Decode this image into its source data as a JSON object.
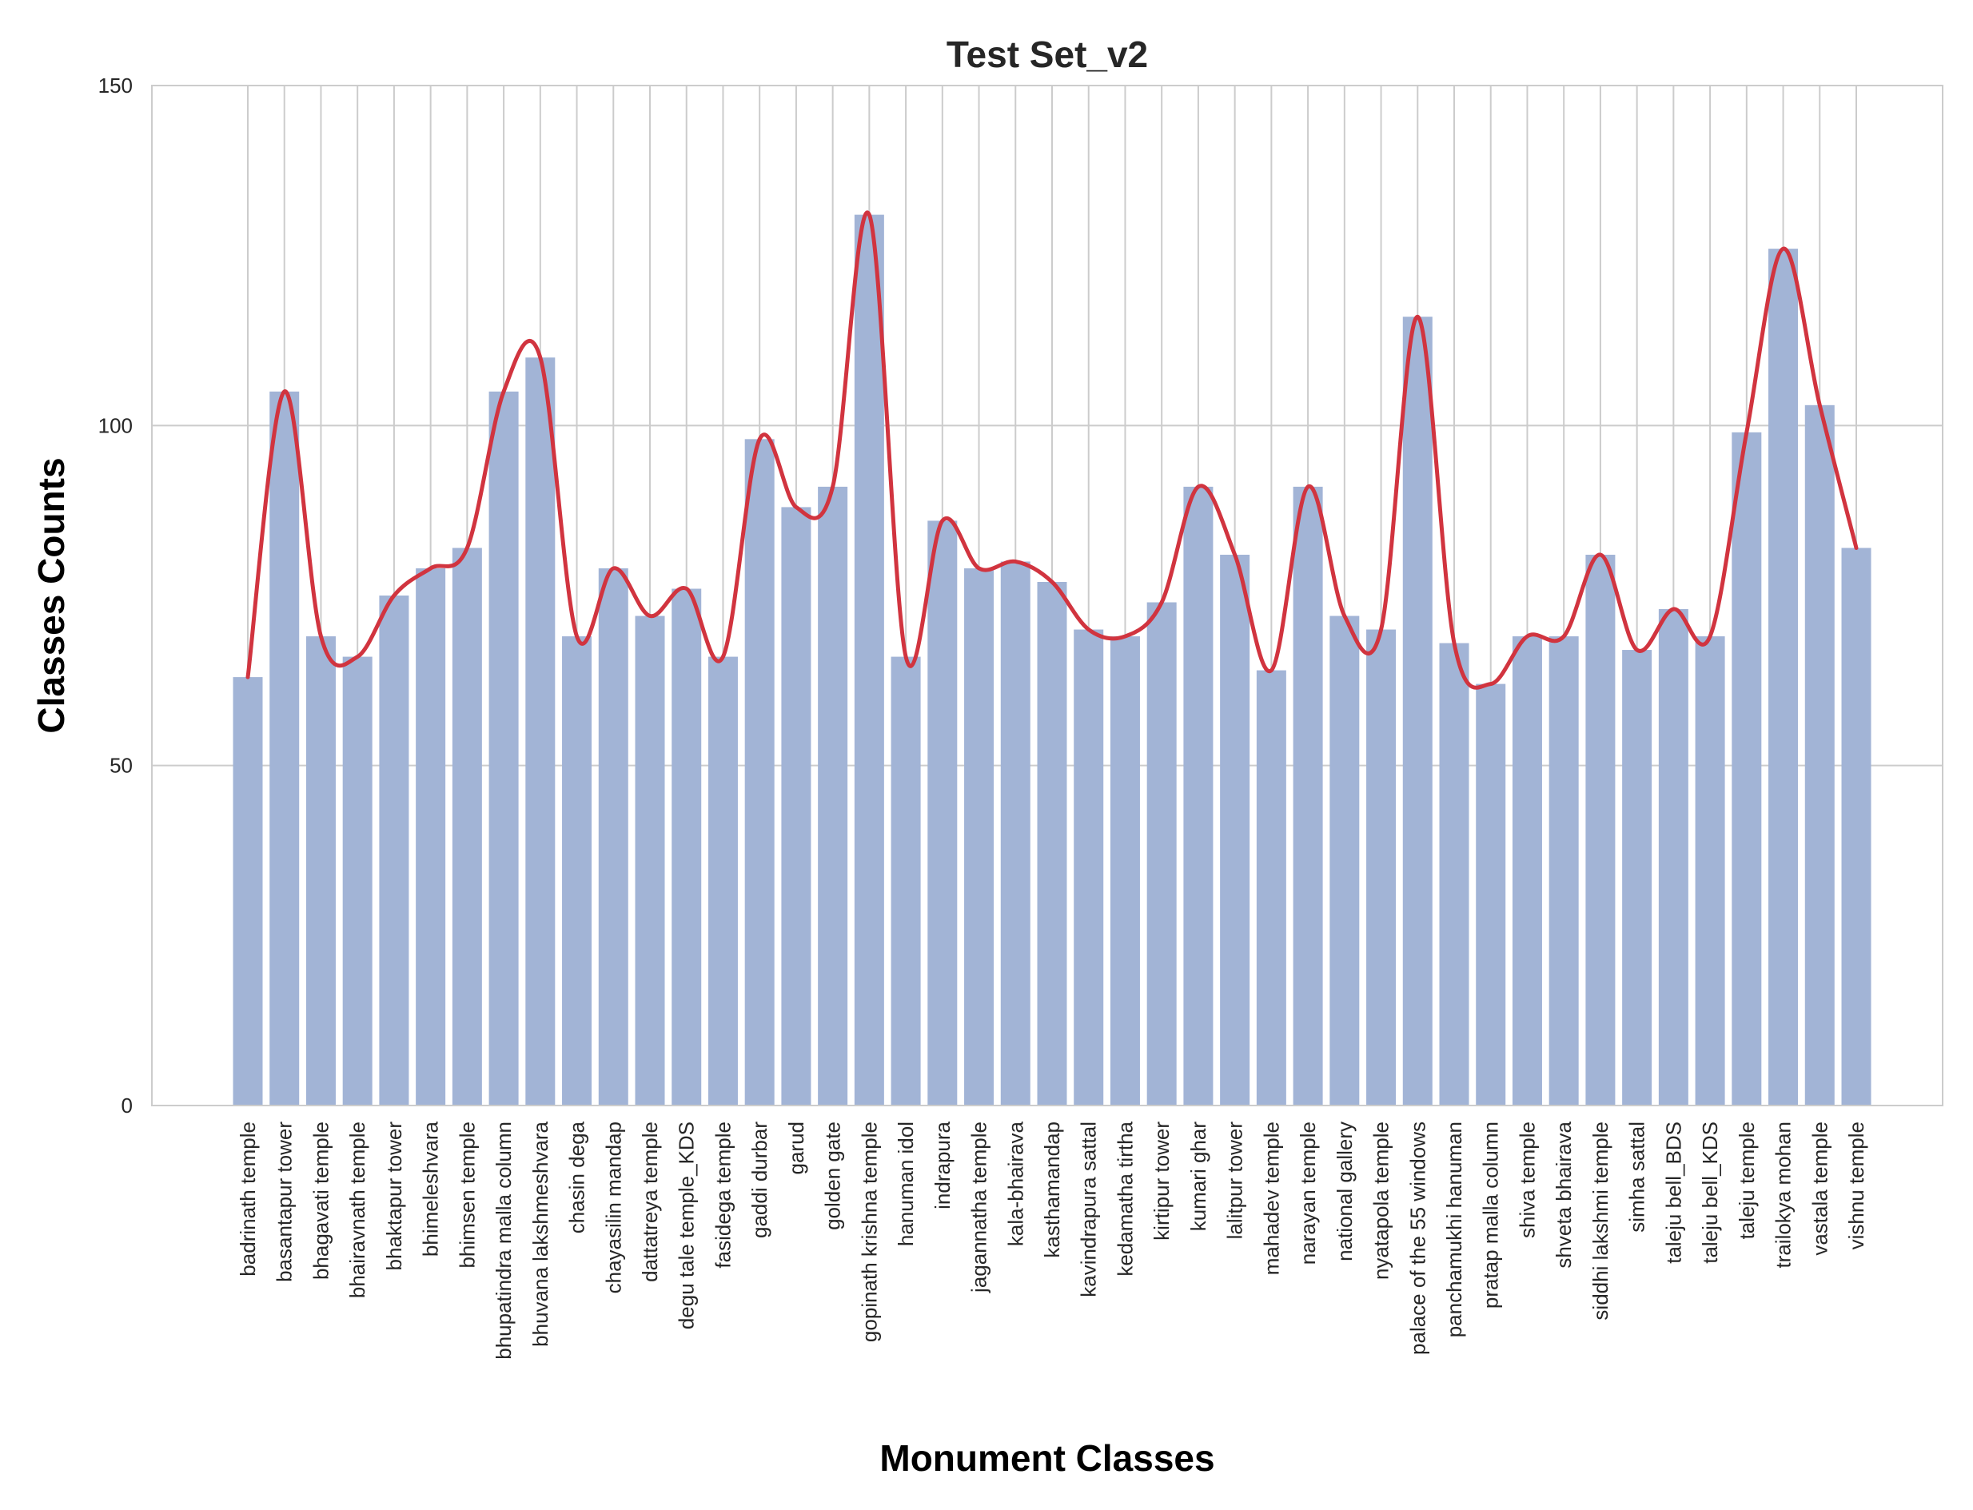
{
  "chart_data": {
    "type": "bar",
    "title": "Test Set_v2",
    "xlabel": "Monument Classes",
    "ylabel": "Classes Counts",
    "ylim": [
      0,
      150
    ],
    "yticks": [
      0,
      50,
      100,
      150
    ],
    "grid": true,
    "categories": [
      "badrinath temple",
      "basantapur tower",
      "bhagavati temple",
      "bhairavnath temple",
      "bhaktapur tower",
      "bhimeleshvara",
      "bhimsen temple",
      "bhupatindra malla column",
      "bhuvana lakshmeshvara",
      "chasin dega",
      "chayasilin mandap",
      "dattatreya temple",
      "degu tale temple_KDS",
      "fasidega temple",
      "gaddi durbar",
      "garud",
      "golden gate",
      "gopinath krishna temple",
      "hanuman idol",
      "indrapura",
      "jagannatha temple",
      "kala-bhairava",
      "kasthamandap",
      "kavindrapura sattal",
      "kedamatha tirtha",
      "kirtipur tower",
      "kumari ghar",
      "lalitpur tower",
      "mahadev temple",
      "narayan temple",
      "national gallery",
      "nyatapola temple",
      "palace of the 55 windows",
      "panchamukhi hanuman",
      "pratap malla column",
      "shiva temple",
      "shveta bhairava",
      "siddhi lakshmi temple",
      "simha sattal",
      "taleju bell_BDS",
      "taleju bell_KDS",
      "taleju temple",
      "trailokya mohan",
      "vastala temple",
      "vishnu temple"
    ],
    "values": [
      63,
      105,
      69,
      66,
      75,
      79,
      82,
      105,
      110,
      69,
      79,
      72,
      76,
      66,
      98,
      88,
      91,
      131,
      66,
      86,
      79,
      80,
      77,
      70,
      69,
      74,
      91,
      81,
      64,
      91,
      72,
      70,
      116,
      68,
      62,
      69,
      69,
      81,
      67,
      73,
      69,
      99,
      126,
      103,
      82
    ],
    "bar_color": "#a2b4d6",
    "line_color": "#d1343f",
    "line": "smoothed curve through bar tops"
  }
}
